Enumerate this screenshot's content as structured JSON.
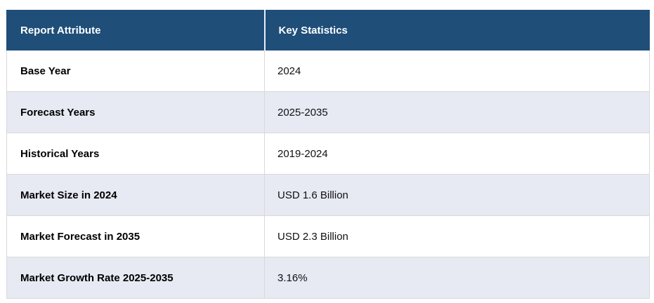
{
  "table": {
    "columns": [
      {
        "label": "Report Attribute"
      },
      {
        "label": "Key Statistics"
      }
    ],
    "rows": [
      {
        "attribute": "Base Year",
        "value": "2024"
      },
      {
        "attribute": "Forecast Years",
        "value": "2025-2035"
      },
      {
        "attribute": "Historical Years",
        "value": "2019-2024"
      },
      {
        "attribute": "Market Size in 2024",
        "value": "USD 1.6 Billion"
      },
      {
        "attribute": "Market Forecast in 2035",
        "value": "USD 2.3 Billion"
      },
      {
        "attribute": "Market Growth Rate 2025-2035",
        "value": "3.16%"
      }
    ]
  },
  "colors": {
    "header_bg": "#1f4e79",
    "header_text": "#ffffff",
    "row_bg": "#ffffff",
    "row_alt_bg": "#e7e9f3",
    "border": "#d9d9d9",
    "text": "#000000"
  }
}
